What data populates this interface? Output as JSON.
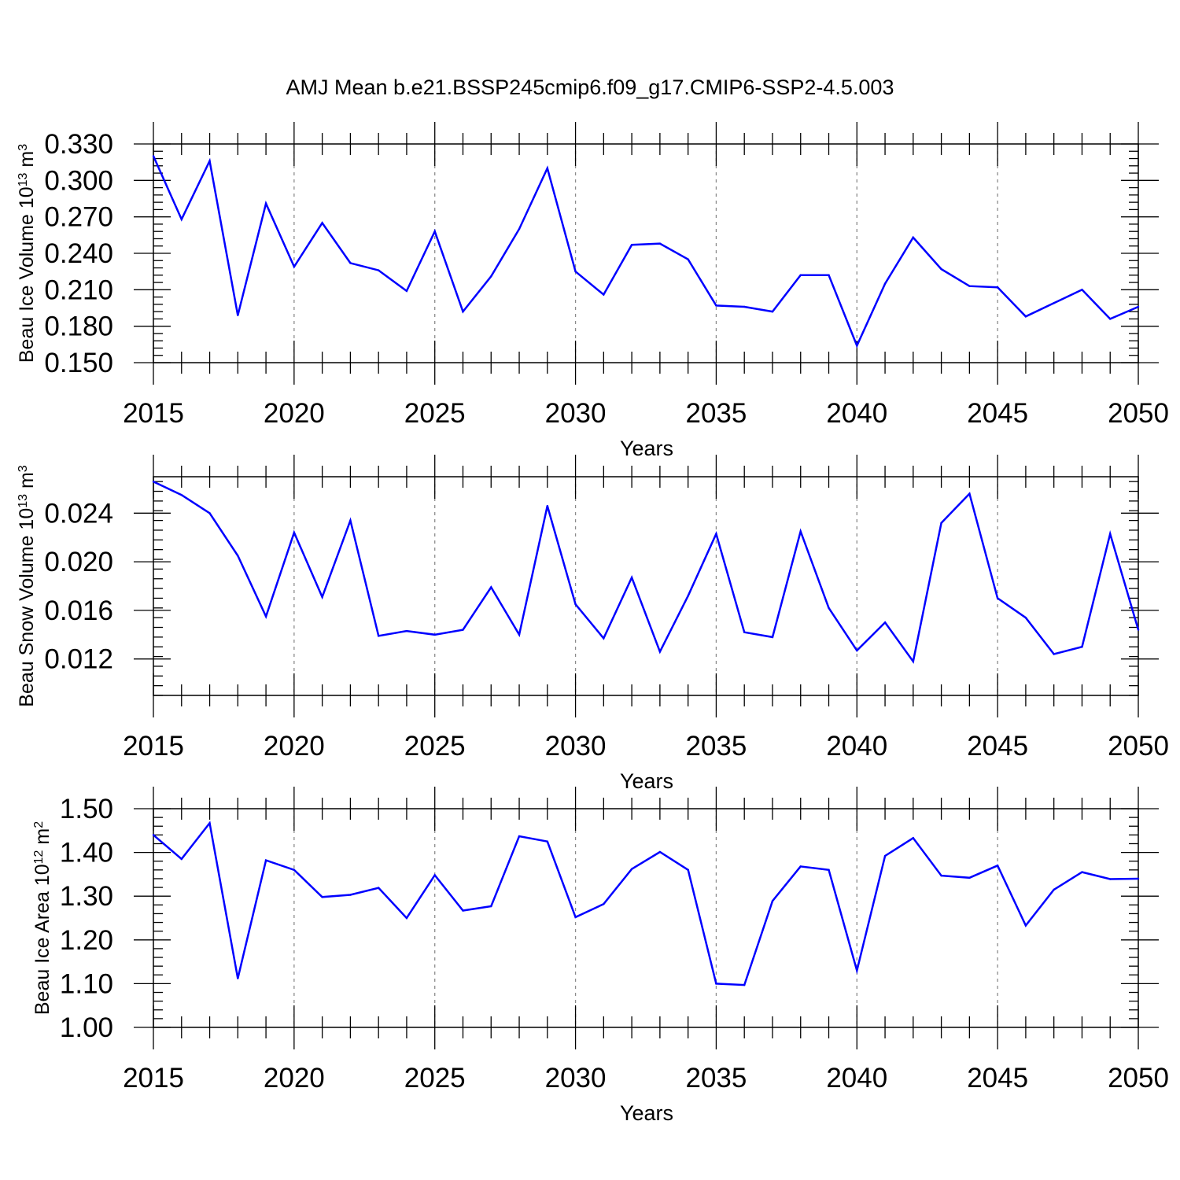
{
  "title": "AMJ Mean b.e21.BSSP245cmip6.f09_g17.CMIP6-SSP2-4.5.003",
  "colors": {
    "line": "#0000ff",
    "grid": "#8c8c8c",
    "axis": "#000000"
  },
  "chart_data": [
    {
      "type": "line",
      "xlabel": "Years",
      "ylabel": {
        "main": "Beau Ice Volume 10",
        "sup": "13",
        "unit": " m",
        "unit_sup": "3"
      },
      "xlim": [
        2015,
        2050
      ],
      "ylim": [
        0.15,
        0.33
      ],
      "xticks": [
        2015,
        2020,
        2025,
        2030,
        2035,
        2040,
        2045,
        2050
      ],
      "yticks": [
        "0.150",
        "0.180",
        "0.210",
        "0.240",
        "0.270",
        "0.300",
        "0.330"
      ],
      "ytick_values": [
        0.15,
        0.18,
        0.21,
        0.24,
        0.27,
        0.3,
        0.33
      ],
      "grid": "vertical dashed at major x ticks",
      "x": [
        2015,
        2016,
        2017,
        2018,
        2019,
        2020,
        2021,
        2022,
        2023,
        2024,
        2025,
        2026,
        2027,
        2028,
        2029,
        2030,
        2031,
        2032,
        2033,
        2034,
        2035,
        2036,
        2037,
        2038,
        2039,
        2040,
        2041,
        2042,
        2043,
        2044,
        2045,
        2046,
        2047,
        2048,
        2049,
        2050
      ],
      "y": [
        0.32,
        0.268,
        0.316,
        0.189,
        0.281,
        0.229,
        0.265,
        0.232,
        0.226,
        0.209,
        0.258,
        0.192,
        0.221,
        0.26,
        0.31,
        0.225,
        0.206,
        0.247,
        0.248,
        0.235,
        0.197,
        0.196,
        0.192,
        0.222,
        0.222,
        0.164,
        0.215,
        0.253,
        0.227,
        0.213,
        0.212,
        0.188,
        0.199,
        0.21,
        0.186,
        0.196
      ]
    },
    {
      "type": "line",
      "xlabel": "Years",
      "ylabel": {
        "main": "Beau Snow Volume 10",
        "sup": "13",
        "unit": " m",
        "unit_sup": "3"
      },
      "xlim": [
        2015,
        2050
      ],
      "ylim": [
        0.009,
        0.027
      ],
      "xticks": [
        2015,
        2020,
        2025,
        2030,
        2035,
        2040,
        2045,
        2050
      ],
      "yticks": [
        "0.012",
        "0.016",
        "0.020",
        "0.024"
      ],
      "ytick_values": [
        0.012,
        0.016,
        0.02,
        0.024
      ],
      "grid": "vertical dashed at major x ticks",
      "x": [
        2015,
        2016,
        2017,
        2018,
        2019,
        2020,
        2021,
        2022,
        2023,
        2024,
        2025,
        2026,
        2027,
        2028,
        2029,
        2030,
        2031,
        2032,
        2033,
        2034,
        2035,
        2036,
        2037,
        2038,
        2039,
        2040,
        2041,
        2042,
        2043,
        2044,
        2045,
        2046,
        2047,
        2048,
        2049,
        2050
      ],
      "y": [
        0.0266,
        0.0255,
        0.024,
        0.0205,
        0.0155,
        0.0224,
        0.0171,
        0.0234,
        0.0139,
        0.0143,
        0.014,
        0.0144,
        0.0179,
        0.014,
        0.0246,
        0.0165,
        0.0137,
        0.0187,
        0.0126,
        0.0172,
        0.0223,
        0.0142,
        0.0138,
        0.0225,
        0.0162,
        0.0127,
        0.015,
        0.0118,
        0.0232,
        0.0256,
        0.017,
        0.0154,
        0.0124,
        0.013,
        0.0223,
        0.0144
      ]
    },
    {
      "type": "line",
      "xlabel": "Years",
      "ylabel": {
        "main": "Beau Ice Area 10",
        "sup": "12",
        "unit": " m",
        "unit_sup": "2"
      },
      "xlim": [
        2015,
        2050
      ],
      "ylim": [
        1.0,
        1.5
      ],
      "xticks": [
        2015,
        2020,
        2025,
        2030,
        2035,
        2040,
        2045,
        2050
      ],
      "yticks": [
        "1.00",
        "1.10",
        "1.20",
        "1.30",
        "1.40",
        "1.50"
      ],
      "ytick_values": [
        1.0,
        1.1,
        1.2,
        1.3,
        1.4,
        1.5
      ],
      "grid": "vertical dashed at major x ticks",
      "x": [
        2015,
        2016,
        2017,
        2018,
        2019,
        2020,
        2021,
        2022,
        2023,
        2024,
        2025,
        2026,
        2027,
        2028,
        2029,
        2030,
        2031,
        2032,
        2033,
        2034,
        2035,
        2036,
        2037,
        2038,
        2039,
        2040,
        2041,
        2042,
        2043,
        2044,
        2045,
        2046,
        2047,
        2048,
        2049,
        2050
      ],
      "y": [
        1.44,
        1.385,
        1.467,
        1.112,
        1.382,
        1.36,
        1.298,
        1.303,
        1.319,
        1.25,
        1.348,
        1.267,
        1.277,
        1.437,
        1.425,
        1.252,
        1.282,
        1.362,
        1.401,
        1.36,
        1.1,
        1.097,
        1.289,
        1.368,
        1.36,
        1.13,
        1.392,
        1.433,
        1.347,
        1.342,
        1.37,
        1.233,
        1.315,
        1.355,
        1.339,
        1.34
      ]
    }
  ]
}
